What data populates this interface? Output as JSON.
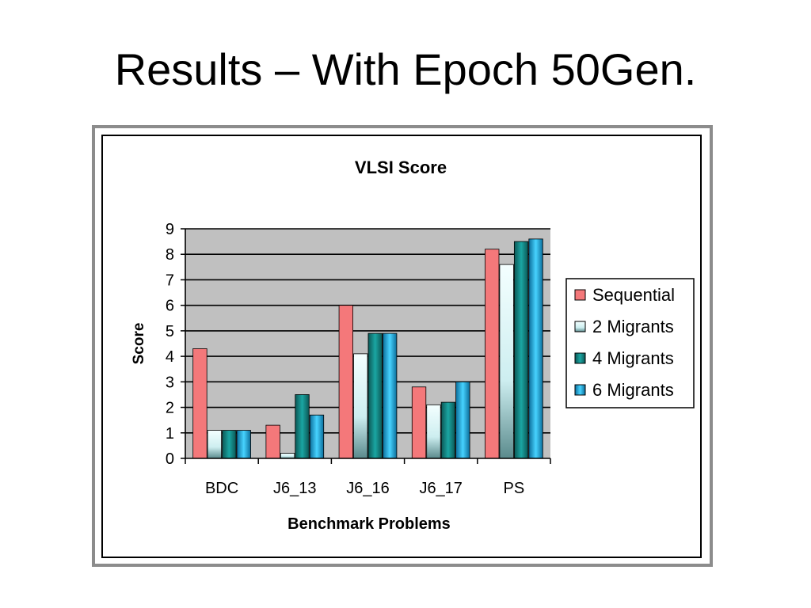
{
  "slide": {
    "title": "Results – With Epoch 50Gen."
  },
  "chart_data": {
    "type": "bar",
    "title": "VLSI Score",
    "xlabel": "Benchmark Problems",
    "ylabel": "Score",
    "ylim": [
      0,
      9
    ],
    "yticks": [
      "0",
      "1",
      "2",
      "3",
      "4",
      "5",
      "6",
      "7",
      "8",
      "9"
    ],
    "grid": true,
    "legend_position": "right",
    "categories": [
      "BDC",
      "J6_13",
      "J6_16",
      "J6_17",
      "PS"
    ],
    "series": [
      {
        "name": "Sequential",
        "values": [
          4.3,
          1.3,
          6.0,
          2.8,
          8.2
        ],
        "color": "#f4787a"
      },
      {
        "name": "2 Migrants",
        "values": [
          1.1,
          0.2,
          4.1,
          2.1,
          7.6
        ],
        "color": "#cdeef0"
      },
      {
        "name": "4 Migrants",
        "values": [
          1.1,
          2.5,
          4.9,
          2.2,
          8.5
        ],
        "color": "#1aa6a3"
      },
      {
        "name": "6 Migrants",
        "values": [
          1.1,
          1.7,
          4.9,
          3.0,
          8.6
        ],
        "color": "#2cc6ea"
      }
    ]
  }
}
